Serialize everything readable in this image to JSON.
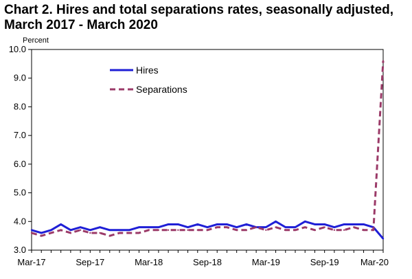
{
  "title_line1": "Chart 2. Hires and total separations rates, seasonally adjusted,",
  "title_line2": "March 2017 - March 2020",
  "colors": {
    "hires": "#1f1fd6",
    "separations": "#9b3a68"
  },
  "chart_data": {
    "type": "line",
    "title": "Chart 2. Hires and total separations rates, seasonally adjusted, March 2017 - March 2020",
    "ylabel": "Percent",
    "xlabel": "",
    "ylim": [
      3.0,
      10.0
    ],
    "yticks": [
      "3.0",
      "4.0",
      "5.0",
      "6.0",
      "7.0",
      "8.0",
      "9.0",
      "10.0"
    ],
    "xtick_labels": [
      "Mar-17",
      "Sep-17",
      "Mar-18",
      "Sep-18",
      "Mar-19",
      "Sep-19",
      "Mar-20"
    ],
    "xtick_positions": [
      0,
      6,
      12,
      18,
      24,
      30,
      36
    ],
    "x": [
      "Mar-17",
      "Apr-17",
      "May-17",
      "Jun-17",
      "Jul-17",
      "Aug-17",
      "Sep-17",
      "Oct-17",
      "Nov-17",
      "Dec-17",
      "Jan-18",
      "Feb-18",
      "Mar-18",
      "Apr-18",
      "May-18",
      "Jun-18",
      "Jul-18",
      "Aug-18",
      "Sep-18",
      "Oct-18",
      "Nov-18",
      "Dec-18",
      "Jan-19",
      "Feb-19",
      "Mar-19",
      "Apr-19",
      "May-19",
      "Jun-19",
      "Jul-19",
      "Aug-19",
      "Sep-19",
      "Oct-19",
      "Nov-19",
      "Dec-19",
      "Jan-20",
      "Feb-20",
      "Mar-20"
    ],
    "legend_position": "upper-left",
    "grid": false,
    "series": [
      {
        "name": "Hires",
        "style": "solid",
        "values": [
          3.7,
          3.6,
          3.7,
          3.9,
          3.7,
          3.8,
          3.7,
          3.8,
          3.7,
          3.7,
          3.7,
          3.8,
          3.8,
          3.8,
          3.9,
          3.9,
          3.8,
          3.9,
          3.8,
          3.9,
          3.9,
          3.8,
          3.9,
          3.8,
          3.8,
          4.0,
          3.8,
          3.8,
          4.0,
          3.9,
          3.9,
          3.8,
          3.9,
          3.9,
          3.9,
          3.8,
          3.4
        ]
      },
      {
        "name": "Separations",
        "style": "dashed",
        "values": [
          3.6,
          3.5,
          3.6,
          3.7,
          3.6,
          3.7,
          3.6,
          3.6,
          3.5,
          3.6,
          3.6,
          3.6,
          3.7,
          3.7,
          3.7,
          3.7,
          3.7,
          3.7,
          3.7,
          3.8,
          3.8,
          3.7,
          3.7,
          3.8,
          3.7,
          3.8,
          3.7,
          3.7,
          3.8,
          3.7,
          3.8,
          3.7,
          3.7,
          3.8,
          3.7,
          3.7,
          9.6
        ]
      }
    ]
  }
}
